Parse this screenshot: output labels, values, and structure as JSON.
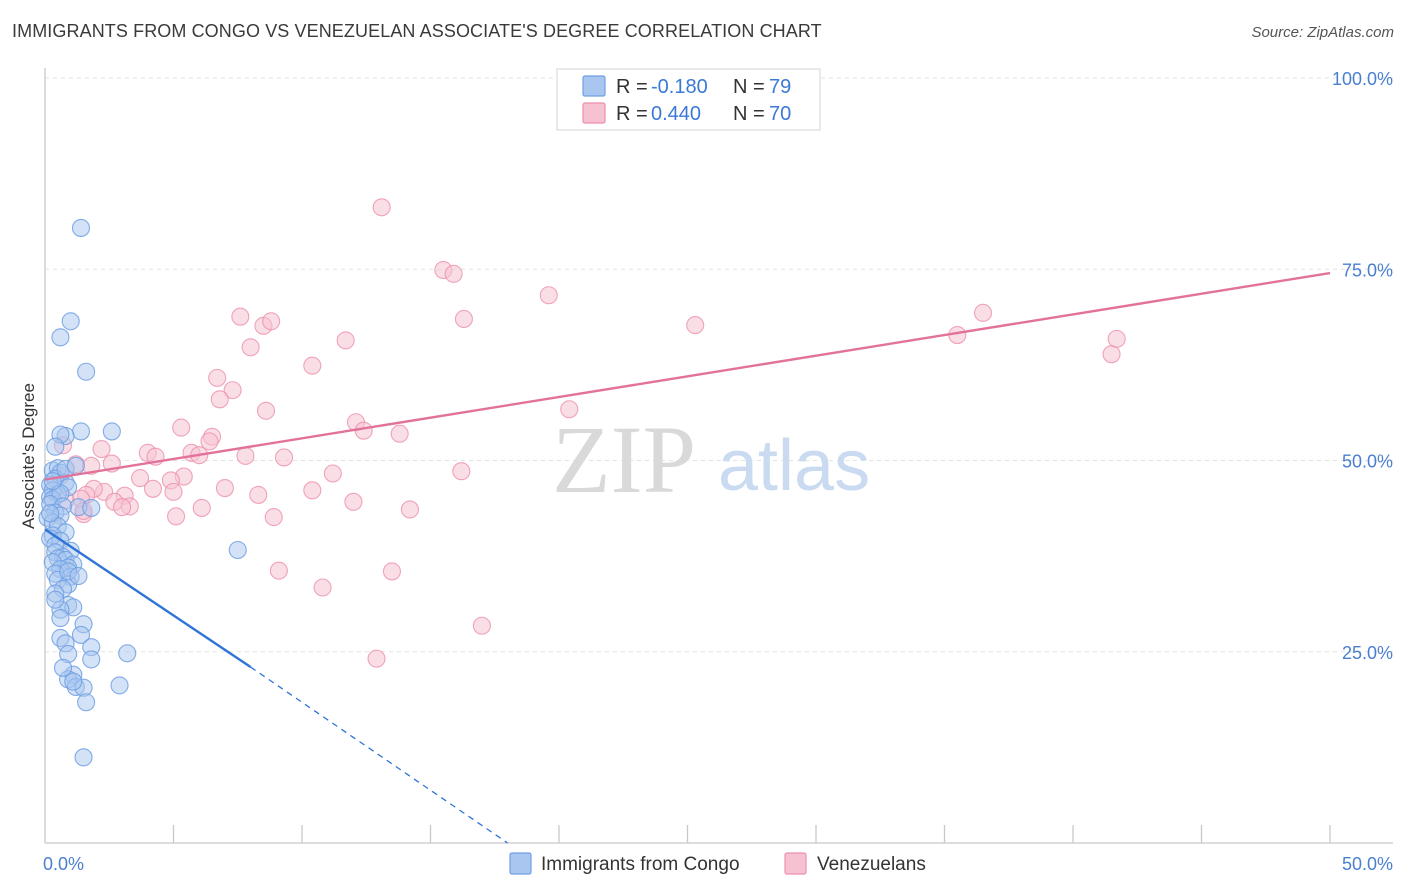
{
  "title": "IMMIGRANTS FROM CONGO VS VENEZUELAN ASSOCIATE'S DEGREE CORRELATION CHART",
  "source": "Source: ZipAtlas.com",
  "watermark": {
    "zip": "ZIP",
    "atlas": "atlas"
  },
  "legend": {
    "rows": [
      {
        "r_label": "R =",
        "r_value": "-0.180",
        "n_label": "N =",
        "n_value": "79"
      },
      {
        "r_label": "R =",
        "r_value": "0.440",
        "n_label": "N =",
        "n_value": "70"
      }
    ]
  },
  "bottom_legend": [
    "Immigrants from Congo",
    "Venezuelans"
  ],
  "colors": {
    "congo": "#6f9fe2",
    "congo_fill": "#a8c6f0",
    "congo_line": "#2f74d6",
    "venezuelan": "#ec8fab",
    "venezuelan_fill": "#f6c2d2",
    "venezuelan_line": "#e2729a",
    "tick_label": "#4a7fd0"
  },
  "chart_data": {
    "type": "scatter",
    "title": "IMMIGRANTS FROM CONGO VS VENEZUELAN ASSOCIATE'S DEGREE CORRELATION CHART",
    "xlabel": "",
    "ylabel": "Associate's Degree",
    "xlim": [
      0,
      50
    ],
    "ylim": [
      0,
      100
    ],
    "x_tick_labels": [
      "0.0%",
      "50.0%"
    ],
    "y_tick_labels": [
      "100.0%",
      "75.0%",
      "50.0%",
      "25.0%"
    ],
    "y_ticks": [
      100,
      75,
      50,
      25
    ],
    "grid": true,
    "legend_position": "top-center",
    "series": [
      {
        "name": "Immigrants from Congo",
        "r": -0.18,
        "n": 79,
        "trend": {
          "x0": 0,
          "y0": 41,
          "x1": 8,
          "y1": 23,
          "dashed_to_x": 18,
          "dashed_to_y": 0
        },
        "points": [
          [
            1.4,
            80.4
          ],
          [
            1.0,
            68.2
          ],
          [
            0.6,
            66.1
          ],
          [
            1.6,
            61.6
          ],
          [
            2.6,
            53.8
          ],
          [
            1.4,
            53.8
          ],
          [
            0.8,
            53.2
          ],
          [
            0.6,
            53.4
          ],
          [
            0.4,
            51.8
          ],
          [
            0.3,
            48.7
          ],
          [
            0.5,
            49.0
          ],
          [
            0.6,
            48.4
          ],
          [
            0.8,
            47.1
          ],
          [
            0.4,
            47.6
          ],
          [
            0.2,
            46.8
          ],
          [
            0.9,
            46.5
          ],
          [
            0.3,
            46.1
          ],
          [
            0.5,
            45.6
          ],
          [
            0.2,
            45.2
          ],
          [
            0.3,
            44.9
          ],
          [
            0.6,
            45.7
          ],
          [
            1.3,
            43.9
          ],
          [
            0.2,
            44.3
          ],
          [
            0.7,
            44.0
          ],
          [
            0.4,
            43.2
          ],
          [
            0.6,
            42.8
          ],
          [
            0.1,
            42.5
          ],
          [
            0.3,
            41.9
          ],
          [
            0.5,
            41.4
          ],
          [
            0.8,
            40.6
          ],
          [
            0.3,
            40.2
          ],
          [
            0.2,
            39.8
          ],
          [
            0.6,
            39.5
          ],
          [
            0.4,
            38.9
          ],
          [
            1.0,
            38.2
          ],
          [
            0.4,
            38.0
          ],
          [
            0.7,
            37.4
          ],
          [
            0.5,
            37.2
          ],
          [
            0.8,
            37.0
          ],
          [
            0.3,
            36.7
          ],
          [
            1.1,
            36.4
          ],
          [
            0.9,
            36.0
          ],
          [
            0.6,
            35.8
          ],
          [
            0.4,
            35.2
          ],
          [
            1.0,
            34.8
          ],
          [
            0.5,
            34.4
          ],
          [
            0.9,
            33.8
          ],
          [
            0.7,
            33.2
          ],
          [
            0.4,
            32.6
          ],
          [
            0.9,
            31.1
          ],
          [
            1.1,
            30.8
          ],
          [
            0.6,
            30.5
          ],
          [
            0.6,
            29.4
          ],
          [
            1.5,
            28.6
          ],
          [
            1.4,
            27.2
          ],
          [
            0.6,
            26.8
          ],
          [
            0.8,
            26.1
          ],
          [
            1.8,
            25.6
          ],
          [
            3.2,
            24.8
          ],
          [
            0.9,
            24.7
          ],
          [
            1.8,
            24.0
          ],
          [
            1.1,
            22.0
          ],
          [
            0.9,
            21.4
          ],
          [
            1.2,
            20.4
          ],
          [
            1.5,
            20.3
          ],
          [
            2.9,
            20.6
          ],
          [
            1.6,
            18.4
          ],
          [
            1.5,
            11.2
          ],
          [
            7.5,
            38.3
          ],
          [
            1.8,
            43.8
          ],
          [
            0.3,
            47.3
          ],
          [
            0.8,
            48.9
          ],
          [
            1.2,
            49.3
          ],
          [
            0.2,
            43.1
          ],
          [
            0.9,
            35.5
          ],
          [
            1.3,
            34.9
          ],
          [
            0.4,
            31.8
          ],
          [
            0.7,
            22.9
          ],
          [
            1.1,
            21.1
          ]
        ]
      },
      {
        "name": "Venezuelans",
        "r": 0.44,
        "n": 70,
        "trend": {
          "x0": 0,
          "y0": 47.5,
          "x1": 50,
          "y1": 74.5
        },
        "points": [
          [
            13.1,
            83.1
          ],
          [
            15.5,
            74.9
          ],
          [
            15.9,
            74.4
          ],
          [
            19.6,
            71.6
          ],
          [
            7.6,
            68.8
          ],
          [
            8.5,
            67.6
          ],
          [
            8.8,
            68.2
          ],
          [
            16.3,
            68.5
          ],
          [
            25.3,
            67.7
          ],
          [
            36.5,
            69.3
          ],
          [
            35.5,
            66.4
          ],
          [
            41.5,
            63.9
          ],
          [
            41.7,
            65.9
          ],
          [
            11.7,
            65.7
          ],
          [
            8.0,
            64.8
          ],
          [
            10.4,
            62.4
          ],
          [
            6.7,
            60.8
          ],
          [
            7.3,
            59.2
          ],
          [
            6.8,
            58.0
          ],
          [
            8.6,
            56.5
          ],
          [
            20.4,
            56.7
          ],
          [
            12.1,
            55.0
          ],
          [
            12.4,
            53.9
          ],
          [
            13.8,
            53.5
          ],
          [
            5.3,
            54.3
          ],
          [
            6.5,
            53.1
          ],
          [
            6.4,
            52.5
          ],
          [
            4.0,
            51.0
          ],
          [
            5.7,
            51.0
          ],
          [
            6.0,
            50.7
          ],
          [
            7.8,
            50.6
          ],
          [
            9.3,
            50.4
          ],
          [
            4.3,
            50.5
          ],
          [
            2.2,
            51.5
          ],
          [
            2.6,
            49.6
          ],
          [
            1.2,
            49.5
          ],
          [
            1.8,
            49.3
          ],
          [
            0.6,
            48.0
          ],
          [
            11.2,
            48.3
          ],
          [
            16.2,
            48.6
          ],
          [
            5.4,
            47.9
          ],
          [
            3.7,
            47.7
          ],
          [
            4.9,
            47.4
          ],
          [
            7.0,
            46.4
          ],
          [
            10.4,
            46.1
          ],
          [
            4.2,
            46.3
          ],
          [
            5.0,
            45.9
          ],
          [
            8.3,
            45.5
          ],
          [
            2.3,
            45.9
          ],
          [
            1.9,
            46.3
          ],
          [
            1.6,
            45.5
          ],
          [
            3.1,
            45.4
          ],
          [
            1.4,
            45.0
          ],
          [
            0.8,
            44.8
          ],
          [
            12.0,
            44.6
          ],
          [
            2.7,
            44.6
          ],
          [
            3.3,
            44.0
          ],
          [
            3.0,
            43.9
          ],
          [
            6.1,
            43.8
          ],
          [
            14.2,
            43.6
          ],
          [
            1.5,
            43.0
          ],
          [
            5.1,
            42.7
          ],
          [
            8.9,
            42.6
          ],
          [
            1.5,
            43.4
          ],
          [
            9.1,
            35.6
          ],
          [
            13.5,
            35.5
          ],
          [
            10.8,
            33.4
          ],
          [
            17.0,
            28.4
          ],
          [
            12.9,
            24.1
          ],
          [
            0.7,
            52.0
          ]
        ]
      }
    ]
  }
}
